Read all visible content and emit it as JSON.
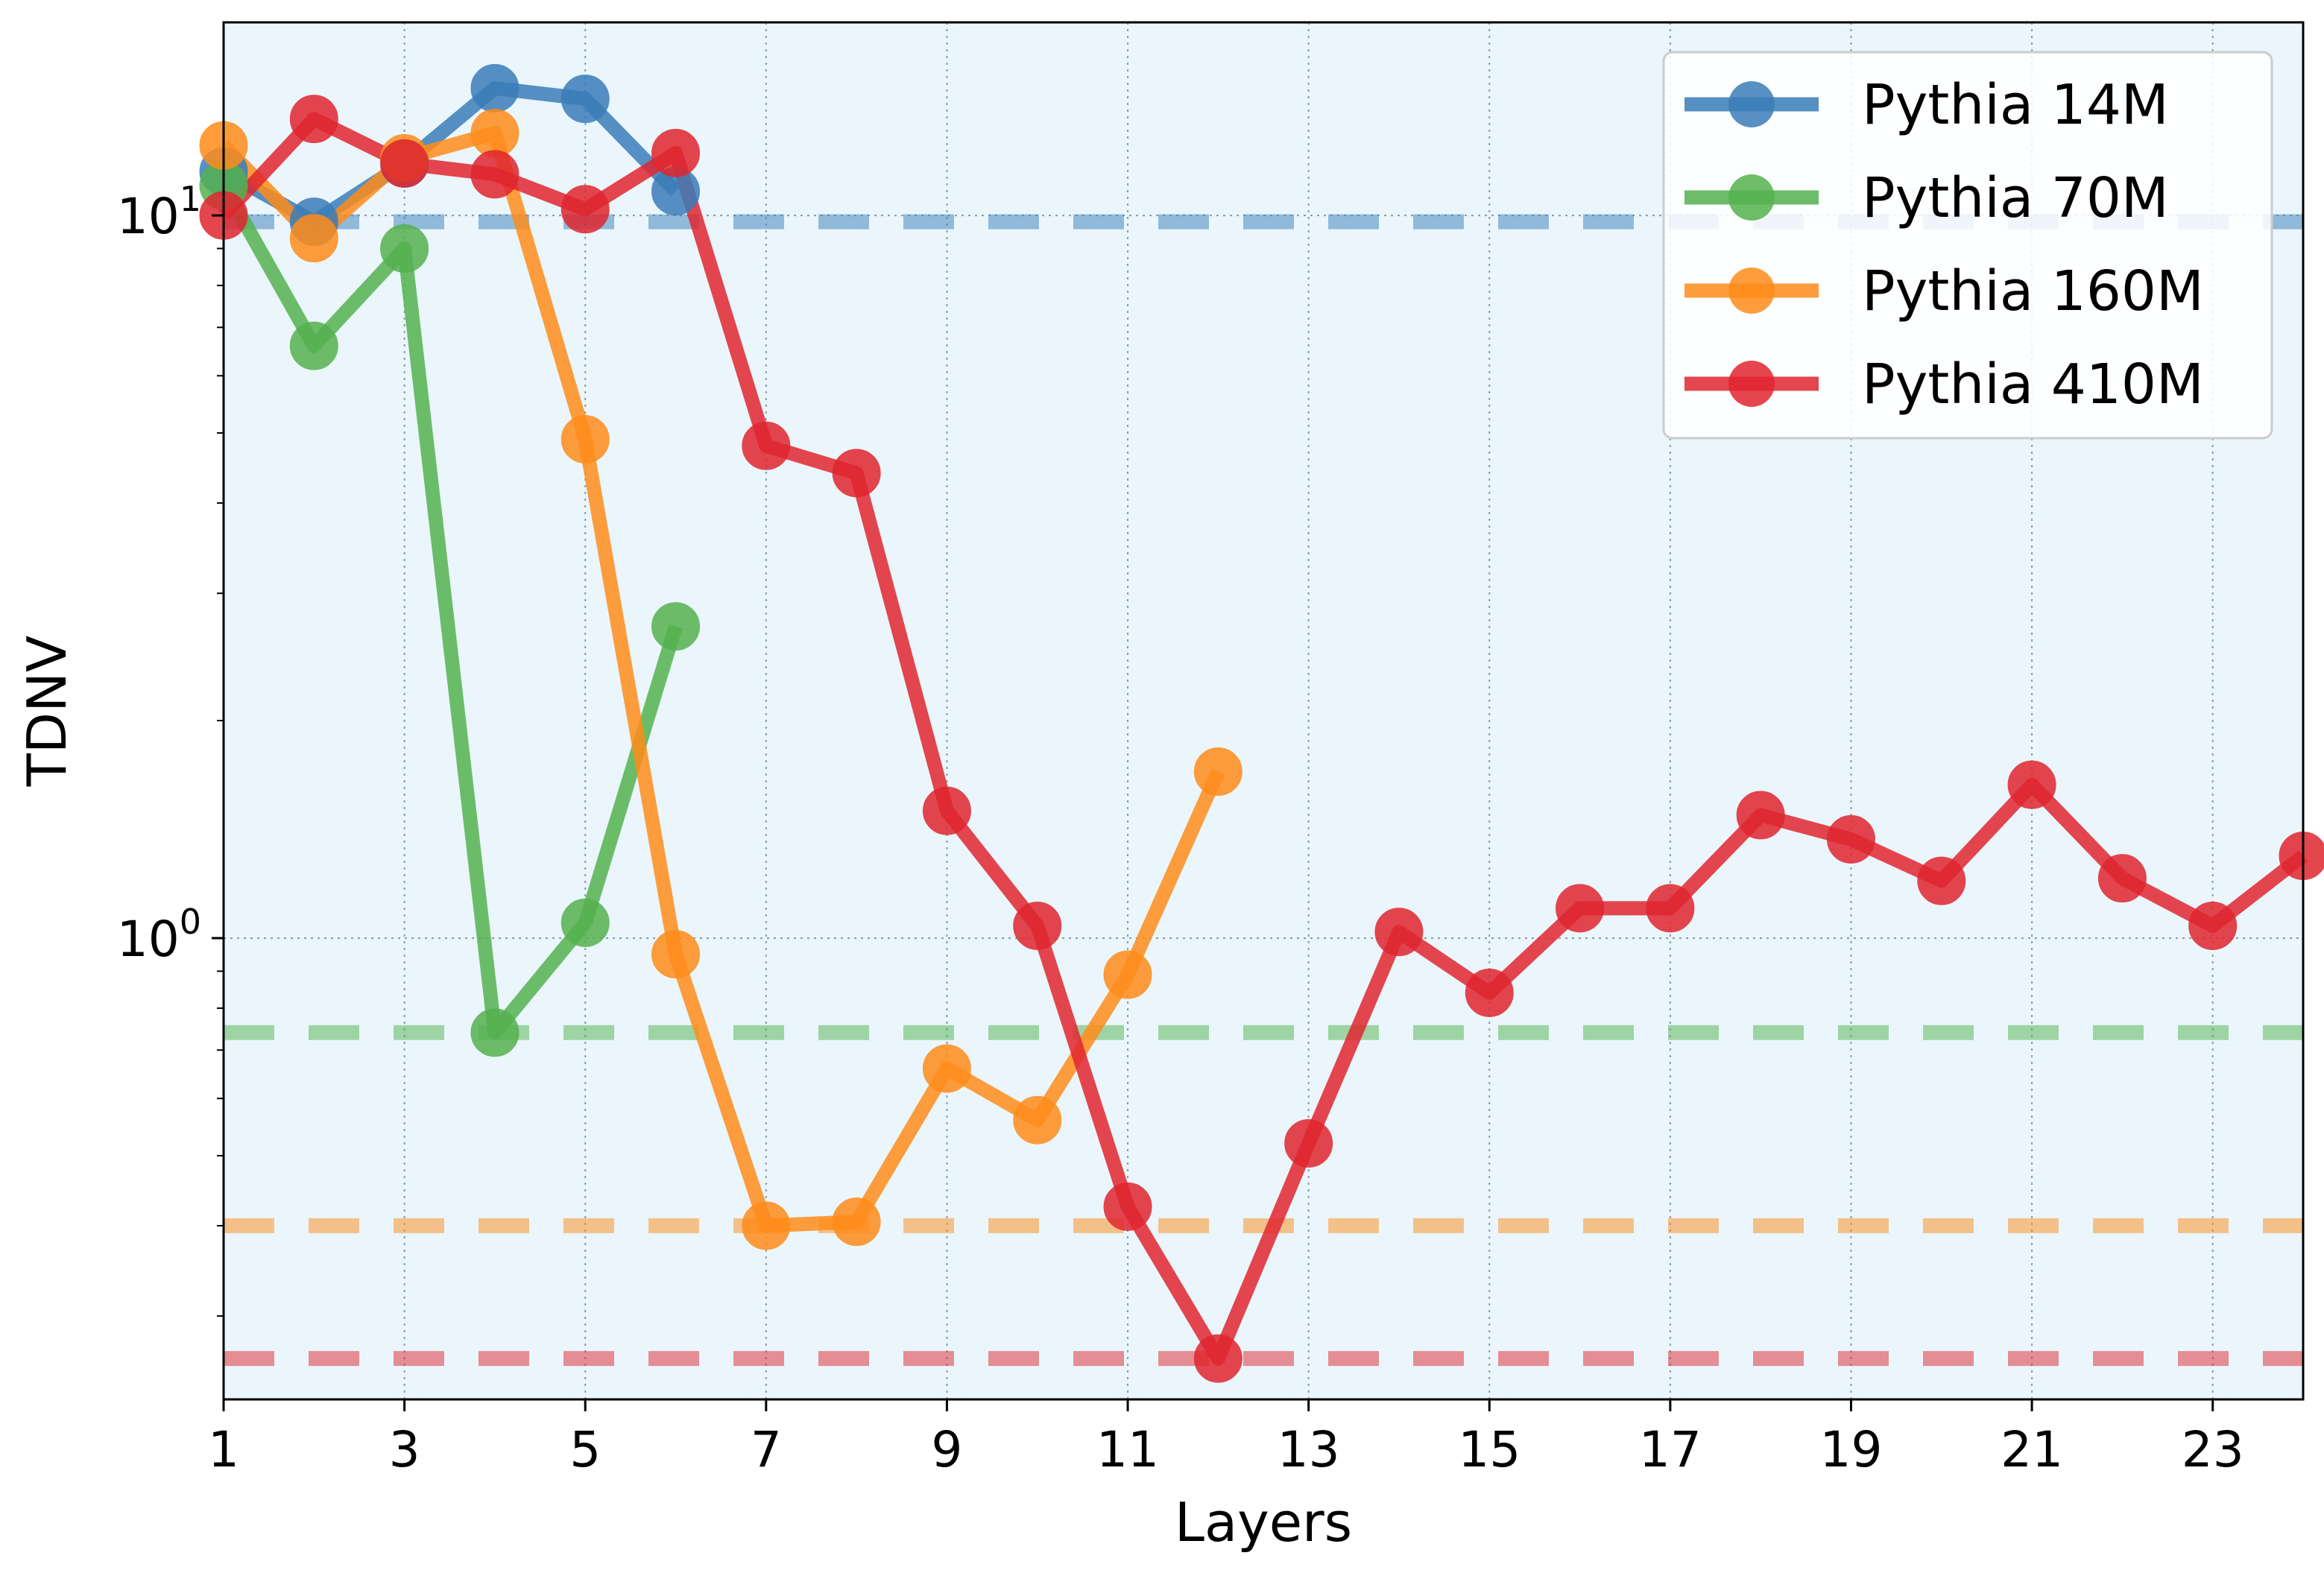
{
  "chart_data": {
    "type": "line",
    "title": "",
    "xlabel": "Layers",
    "ylabel": "TDNV",
    "xlim": [
      1,
      24
    ],
    "ylim": [
      0.23,
      18.5
    ],
    "yscale": "log",
    "xticks": [
      1,
      3,
      5,
      7,
      9,
      11,
      13,
      15,
      17,
      19,
      21,
      23
    ],
    "yticks": [
      {
        "value": 1,
        "base": "10",
        "exp": "0"
      },
      {
        "value": 10,
        "base": "10",
        "exp": "1"
      }
    ],
    "grid": true,
    "background": "#eaf6fc",
    "legend_position": "top-right",
    "series": [
      {
        "name": "Pythia 14M",
        "color": "#3b7db8",
        "x": [
          1,
          2,
          3,
          4,
          5,
          6
        ],
        "values": [
          11.5,
          9.8,
          11.8,
          15.0,
          14.5,
          10.8
        ],
        "baseline": 9.8
      },
      {
        "name": "Pythia 70M",
        "color": "#55b14f",
        "x": [
          1,
          2,
          3,
          4,
          5,
          6
        ],
        "values": [
          11.0,
          6.6,
          9.0,
          0.74,
          1.05,
          2.7
        ],
        "baseline": 0.74
      },
      {
        "name": "Pythia 160M",
        "color": "#ff8c1a",
        "x": [
          1,
          2,
          3,
          4,
          5,
          6,
          7,
          8,
          9,
          10,
          11,
          12
        ],
        "values": [
          12.5,
          9.3,
          12.0,
          13.0,
          4.9,
          0.95,
          0.4,
          0.405,
          0.66,
          0.56,
          0.89,
          1.7
        ],
        "baseline": 0.4
      },
      {
        "name": "Pythia 410M",
        "color": "#e0262f",
        "x": [
          1,
          2,
          3,
          4,
          5,
          6,
          7,
          8,
          9,
          10,
          11,
          12,
          13,
          14,
          15,
          16,
          17,
          18,
          19,
          20,
          21,
          22,
          23,
          24
        ],
        "values": [
          10.0,
          13.6,
          11.8,
          11.4,
          10.2,
          12.2,
          4.8,
          4.4,
          1.5,
          1.04,
          0.425,
          0.262,
          0.52,
          1.02,
          0.84,
          1.1,
          1.1,
          1.48,
          1.37,
          1.2,
          1.63,
          1.21,
          1.04,
          1.3
        ],
        "baseline": 0.262
      }
    ]
  }
}
